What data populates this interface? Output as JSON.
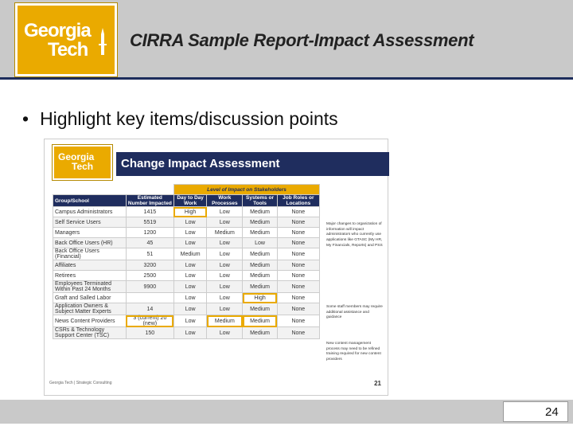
{
  "header": {
    "logo": {
      "line1": "Georgia",
      "line2": "Tech"
    },
    "title": "CIRRA Sample Report-Impact Assessment"
  },
  "bullet": {
    "text": "Highlight key items/discussion points"
  },
  "embed": {
    "logo": {
      "line1": "Georgia",
      "line2": "Tech"
    },
    "title": "Change Impact Assessment",
    "level_header": "Level of Impact on Stakeholders",
    "columns": [
      "Group/School",
      "Estimated Number Impacted",
      "Day to Day Work",
      "Work Processes",
      "Systems or Tools",
      "Job Roles or Locations"
    ],
    "rows": [
      [
        "Campus Administrators",
        "1415",
        "High",
        "Low",
        "Medium",
        "None"
      ],
      [
        "Self Service Users",
        "5519",
        "Low",
        "Low",
        "Medium",
        "None"
      ],
      [
        "Managers",
        "1200",
        "Low",
        "Medium",
        "Medium",
        "None"
      ],
      [
        "Back Office Users (HR)",
        "45",
        "Low",
        "Low",
        "Low",
        "None"
      ],
      [
        "Back Office Users (Financial)",
        "51",
        "Medium",
        "Low",
        "Medium",
        "None"
      ],
      [
        "Affiliates",
        "3200",
        "Low",
        "Low",
        "Medium",
        "None"
      ],
      [
        "Retirees",
        "2500",
        "Low",
        "Low",
        "Medium",
        "None"
      ],
      [
        "Employees Terminated Within Past 24 Months",
        "9900",
        "Low",
        "Low",
        "Medium",
        "None"
      ],
      [
        "Graft and Salled Labor",
        "",
        "Low",
        "Low",
        "High",
        "None"
      ],
      [
        "Application Owners & Subject Matter Experts",
        "14",
        "Low",
        "Low",
        "Medium",
        "None"
      ],
      [
        "News Content Providers",
        "3 (current) 20 (new)",
        "Low",
        "Medium",
        "Medium",
        "None"
      ],
      [
        "CSRs & Technology Support Center (TSC)",
        "150",
        "Low",
        "Low",
        "Medium",
        "None"
      ]
    ],
    "notes": [
      "Major changes to organization of information will impact administrators who currently use applications like GTASC (My HR, My Financials, Reports) and PSS",
      "Some staff members may require additional assistance and guidance",
      "New content management process may need to be refined training required for new content providers"
    ],
    "footer_left": "Georgia Tech | Strategic Consulting",
    "page": "21"
  },
  "footer": {
    "page": "24"
  }
}
